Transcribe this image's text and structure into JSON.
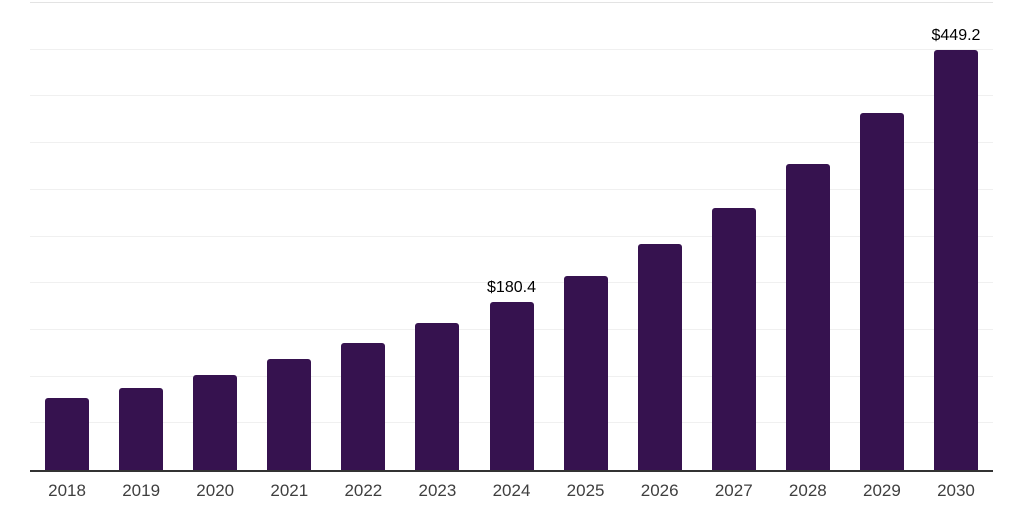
{
  "chart": {
    "background_color": "#ffffff",
    "bar_color": "#36124F",
    "axis_line_color": "#333333",
    "gridline_color": "#f0f0f0",
    "top_gridline_color": "#e3e3e3",
    "tick_label_color": "#3f3f3f",
    "data_label_color": "#000000"
  },
  "chart_data": {
    "type": "bar",
    "title": "",
    "xlabel": "",
    "ylabel": "",
    "legend_position": "none",
    "grid": true,
    "y_tick_labels_visible": false,
    "ylim": [
      0,
      500
    ],
    "gridline_step": 50,
    "categories": [
      "2018",
      "2019",
      "2020",
      "2021",
      "2022",
      "2023",
      "2024",
      "2025",
      "2026",
      "2027",
      "2028",
      "2029",
      "2030"
    ],
    "values": [
      77.0,
      87.3,
      101.8,
      119.3,
      136.2,
      156.9,
      180.4,
      207.6,
      242.1,
      280.5,
      327.4,
      382.6,
      449.2
    ],
    "data_labels": [
      "",
      "",
      "",
      "",
      "",
      "",
      "$180.4",
      "",
      "",
      "",
      "",
      "",
      "$449.2"
    ]
  }
}
